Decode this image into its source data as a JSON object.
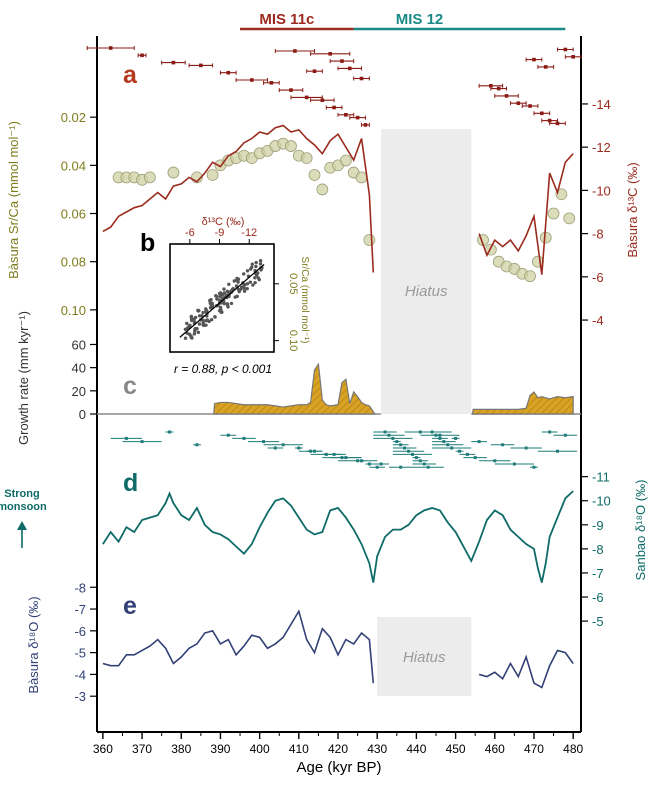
{
  "chart_data": [
    {
      "panel": "a",
      "type": "line",
      "ylabel_left": "Bàsura Sr/Ca (mmol mol⁻¹)",
      "ylabel_right": "Bàsura δ¹³C (‰)",
      "yticks_left": [
        0.02,
        0.04,
        0.06,
        0.08,
        0.1
      ],
      "yticks_right": [
        -14,
        -12,
        -10,
        -8,
        -6,
        -4
      ],
      "ylim_srca": [
        0.0,
        0.115
      ],
      "ylim_d13c": [
        -2.8,
        -18.3
      ],
      "series": [
        {
          "kind": "d13c",
          "x": [
            360,
            362,
            364,
            366,
            368,
            370,
            372,
            374,
            376,
            378,
            380,
            382,
            384,
            386,
            388,
            390,
            392,
            394,
            396,
            398,
            400,
            402,
            404,
            406,
            408,
            410,
            412,
            414,
            416,
            418,
            420,
            422,
            424,
            426,
            428,
            429
          ],
          "y": [
            -8.1,
            -8.3,
            -8.8,
            -9.0,
            -9.2,
            -9.3,
            -9.6,
            -9.9,
            -9.6,
            -10.2,
            -10.3,
            -10.6,
            -10.4,
            -10.8,
            -11.3,
            -11.1,
            -11.6,
            -11.8,
            -12.2,
            -12.4,
            -12.7,
            -12.6,
            -12.9,
            -13.0,
            -12.7,
            -12.8,
            -12.4,
            -12.1,
            -11.7,
            -12.3,
            -12.6,
            -12.0,
            -11.4,
            -12.4,
            -9.8,
            -6.2
          ]
        },
        {
          "kind": "d13c",
          "x": [
            456,
            458,
            460,
            462,
            464,
            466,
            468,
            470,
            472,
            474,
            476,
            478,
            480
          ],
          "y": [
            -8.0,
            -7.0,
            -7.7,
            -7.4,
            -7.7,
            -7.2,
            -7.9,
            -8.8,
            -6.1,
            -10.8,
            -9.9,
            -11.3,
            -11.7
          ]
        },
        {
          "kind": "srca",
          "x": [
            364,
            366,
            368,
            370,
            372,
            378,
            384,
            388,
            390,
            392,
            394,
            396,
            398,
            400,
            402,
            404,
            406,
            408,
            410,
            412,
            414,
            416,
            418,
            420,
            422,
            424,
            426,
            428
          ],
          "y": [
            0.045,
            0.045,
            0.045,
            0.046,
            0.045,
            0.043,
            0.045,
            0.044,
            0.04,
            0.038,
            0.037,
            0.036,
            0.037,
            0.035,
            0.034,
            0.032,
            0.031,
            0.032,
            0.036,
            0.037,
            0.044,
            0.05,
            0.041,
            0.04,
            0.038,
            0.043,
            0.045,
            0.071
          ]
        },
        {
          "kind": "srca",
          "x": [
            457,
            459,
            461,
            463,
            465,
            467,
            469,
            471,
            473,
            475,
            477,
            479
          ],
          "y": [
            0.071,
            0.075,
            0.08,
            0.082,
            0.083,
            0.085,
            0.086,
            0.08,
            0.07,
            0.06,
            0.052,
            0.062
          ]
        }
      ],
      "age_errors": [
        {
          "x": 362,
          "dx": 6
        },
        {
          "x": 370,
          "dx": 1
        },
        {
          "x": 378,
          "dx": 3
        },
        {
          "x": 385,
          "dx": 3
        },
        {
          "x": 392,
          "dx": 2
        },
        {
          "x": 398,
          "dx": 4
        },
        {
          "x": 403,
          "dx": 2
        },
        {
          "x": 408,
          "dx": 3
        },
        {
          "x": 412,
          "dx": 4
        },
        {
          "x": 416,
          "dx": 3
        },
        {
          "x": 419,
          "dx": 2
        },
        {
          "x": 422,
          "dx": 2
        },
        {
          "x": 425,
          "dx": 2
        },
        {
          "x": 427,
          "dx": 1
        },
        {
          "x": 409,
          "dx": 5
        },
        {
          "x": 418,
          "dx": 5
        },
        {
          "x": 421,
          "dx": 3
        },
        {
          "x": 423,
          "dx": 3
        },
        {
          "x": 414,
          "dx": 2
        },
        {
          "x": 426,
          "dx": 2
        },
        {
          "x": 459,
          "dx": 3
        },
        {
          "x": 461,
          "dx": 2
        },
        {
          "x": 463,
          "dx": 3
        },
        {
          "x": 466,
          "dx": 2
        },
        {
          "x": 469,
          "dx": 2
        },
        {
          "x": 472,
          "dx": 2
        },
        {
          "x": 474,
          "dx": 2
        },
        {
          "x": 476,
          "dx": 2
        },
        {
          "x": 478,
          "dx": 2
        },
        {
          "x": 480,
          "dx": 2
        },
        {
          "x": 470,
          "dx": 2
        },
        {
          "x": 473,
          "dx": 2
        }
      ]
    },
    {
      "panel": "b",
      "type": "scatter",
      "xlabel": "δ¹³C (‰)",
      "ylabel": "Sr/Ca (mmol mol⁻¹)",
      "xticks": [
        -6,
        -9,
        -12
      ],
      "yticks": [
        0.05,
        0.1
      ],
      "xlim": [
        -4,
        -14.5
      ],
      "ylim": [
        0.11,
        0.015
      ],
      "annotation": "r = 0.88, p < 0.001",
      "fit": {
        "x": [
          -5.0,
          -13.5
        ],
        "y": [
          0.097,
          0.033
        ]
      }
    },
    {
      "panel": "c",
      "type": "area",
      "ylabel": "Growth rate (mm kyr⁻¹)",
      "yticks": [
        0,
        20,
        40,
        60
      ],
      "ylim": [
        0,
        63
      ],
      "series": [
        {
          "x": [
            388.3,
            388.5,
            390,
            392,
            394,
            396,
            398,
            400,
            402,
            404,
            406,
            408,
            410,
            412,
            413,
            414,
            415,
            416,
            417,
            418,
            420,
            421,
            422,
            423,
            424,
            425,
            426,
            427,
            428,
            429.4
          ],
          "y": [
            0,
            9,
            10,
            10,
            9,
            8,
            8,
            8,
            8,
            7,
            6,
            7,
            8,
            8,
            10,
            38,
            43,
            12,
            8,
            7,
            8,
            27,
            30,
            9,
            19,
            15,
            10,
            8,
            7,
            0
          ]
        },
        {
          "x": [
            454.3,
            454.5,
            456,
            458,
            460,
            462,
            464,
            466,
            468,
            469,
            470,
            471,
            472,
            474,
            476,
            478,
            480
          ],
          "y": [
            0,
            4,
            4,
            4,
            4,
            4,
            4,
            4,
            5,
            16,
            19,
            14,
            15,
            13,
            15,
            14,
            15
          ]
        }
      ]
    },
    {
      "panel": "d",
      "type": "line",
      "ylabel": "Sanbao δ¹⁸O (‰)",
      "yticks": [
        -11,
        -10,
        -9,
        -8,
        -7,
        -6,
        -5
      ],
      "ylim": [
        -3.8,
        -11.9
      ],
      "label_monsoon": "Strong monsoon",
      "series": [
        {
          "x": [
            360,
            362,
            364,
            366,
            368,
            370,
            372,
            374,
            376,
            377,
            378,
            380,
            382,
            384,
            386,
            388,
            390,
            392,
            394,
            396,
            398,
            400,
            402,
            404,
            406,
            408,
            410,
            412,
            414,
            416,
            418,
            420,
            422,
            424,
            426,
            428,
            429,
            430,
            432,
            434,
            436,
            438,
            440,
            442,
            444,
            446,
            448,
            450,
            452,
            454,
            456,
            458,
            460,
            462,
            464,
            466,
            468,
            470,
            471,
            472,
            473,
            474,
            476,
            478,
            480
          ],
          "y": [
            -8.2,
            -8.7,
            -8.3,
            -8.9,
            -8.7,
            -9.2,
            -9.3,
            -9.4,
            -9.9,
            -10.3,
            -9.9,
            -9.4,
            -9.2,
            -9.7,
            -9.0,
            -8.7,
            -8.6,
            -8.4,
            -8.1,
            -7.8,
            -8.2,
            -8.9,
            -9.5,
            -10.0,
            -10.1,
            -9.8,
            -9.3,
            -8.8,
            -8.6,
            -8.7,
            -9.6,
            -9.7,
            -9.3,
            -8.8,
            -8.2,
            -7.4,
            -6.6,
            -7.7,
            -8.5,
            -8.8,
            -8.8,
            -9.0,
            -9.4,
            -9.6,
            -9.7,
            -9.6,
            -9.1,
            -8.7,
            -8.1,
            -7.5,
            -8.3,
            -9.2,
            -9.6,
            -9.4,
            -8.8,
            -8.5,
            -8.2,
            -8.0,
            -7.2,
            -6.6,
            -7.4,
            -8.5,
            -9.3,
            -10.1,
            -10.4
          ]
        }
      ]
    },
    {
      "panel": "e",
      "type": "line",
      "ylabel": "Bàsura δ¹⁸O (‰)",
      "yticks": [
        -8,
        -7,
        -6,
        -5,
        -4,
        -3
      ],
      "ylim": [
        -8.7,
        -2.0
      ],
      "series": [
        {
          "x": [
            360,
            362,
            364,
            366,
            368,
            370,
            372,
            374,
            376,
            378,
            380,
            382,
            384,
            386,
            388,
            390,
            392,
            394,
            396,
            398,
            400,
            402,
            404,
            406,
            408,
            410,
            412,
            414,
            416,
            418,
            420,
            422,
            424,
            426,
            428,
            429
          ],
          "y": [
            -4.5,
            -4.4,
            -4.4,
            -4.9,
            -4.9,
            -5.1,
            -5.3,
            -5.6,
            -5.2,
            -4.5,
            -4.8,
            -5.2,
            -5.4,
            -5.9,
            -6.0,
            -5.4,
            -5.6,
            -4.9,
            -5.3,
            -5.8,
            -5.7,
            -5.2,
            -5.4,
            -5.7,
            -6.3,
            -6.9,
            -5.6,
            -5.0,
            -6.1,
            -5.7,
            -4.9,
            -5.6,
            -5.4,
            -5.9,
            -5.6,
            -3.6
          ]
        },
        {
          "x": [
            456,
            458,
            460,
            462,
            464,
            466,
            468,
            470,
            472,
            474,
            476,
            478,
            480
          ],
          "y": [
            -4.0,
            -3.9,
            -4.1,
            -3.8,
            -4.5,
            -3.9,
            -4.8,
            -3.6,
            -3.4,
            -4.4,
            -5.1,
            -5.0,
            -4.5
          ]
        }
      ]
    }
  ],
  "x_axis": {
    "label": "Age (kyr BP)",
    "ticks": [
      360,
      370,
      380,
      390,
      400,
      410,
      420,
      430,
      440,
      450,
      460,
      470,
      480
    ],
    "xlim": [
      358.5,
      482
    ]
  },
  "mis": [
    {
      "label": "MIS 11c",
      "from": 395,
      "to": 424,
      "color": "#9b2b1e"
    },
    {
      "label": "MIS 12",
      "from": 424,
      "to": 478,
      "color": "#1b8a86"
    }
  ],
  "hiatus": [
    {
      "label": "Hiatus",
      "from": 431,
      "to": 454,
      "panel": "a"
    },
    {
      "label": "Hiatus",
      "from": 430,
      "to": 454,
      "panel": "e"
    }
  ],
  "panel_letters": [
    "a",
    "b",
    "c",
    "d",
    "e"
  ],
  "colors": {
    "d13c": "#9b2b1e",
    "srca": "#7e7d1e",
    "srca_fill": "#cfd1a3",
    "growth": "#d9a224",
    "d18o_sanbao": "#0e6b68",
    "d18o_basura": "#334177",
    "errbar": "#8b1b14",
    "errbar_d": "#1e7c7a"
  }
}
